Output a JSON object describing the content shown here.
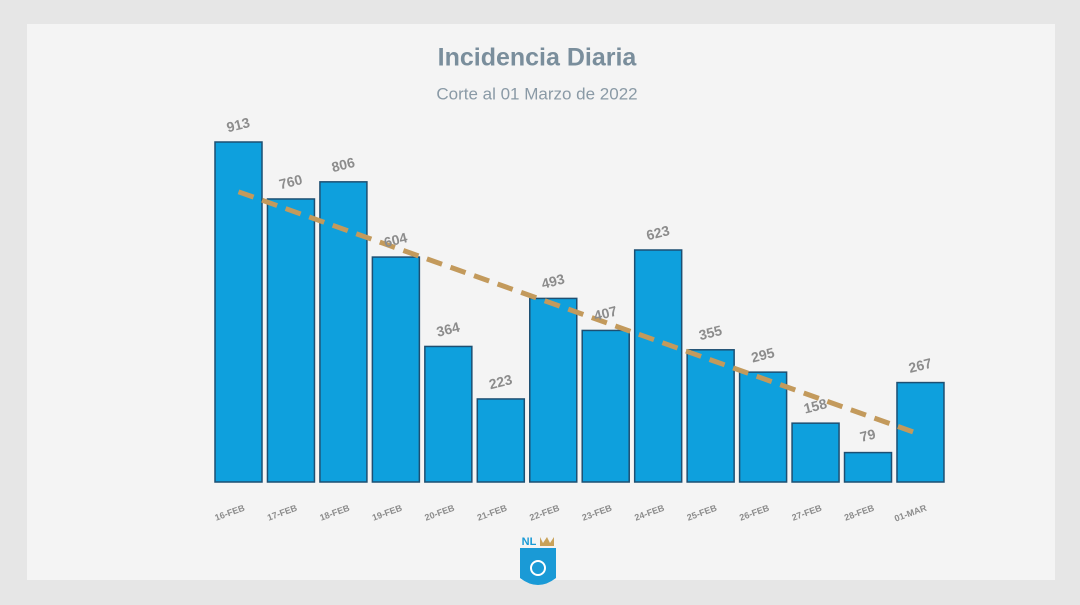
{
  "chart_data": {
    "type": "bar",
    "title": "Incidencia Diaria",
    "subtitle": "Corte al 01 Marzo de 2022",
    "categories": [
      "16-FEB",
      "17-FEB",
      "18-FEB",
      "19-FEB",
      "20-FEB",
      "21-FEB",
      "22-FEB",
      "23-FEB",
      "24-FEB",
      "25-FEB",
      "26-FEB",
      "27-FEB",
      "28-FEB",
      "01-MAR"
    ],
    "values": [
      913,
      760,
      806,
      604,
      364,
      223,
      493,
      407,
      623,
      355,
      295,
      158,
      79,
      267
    ],
    "color": "#0ea0dd",
    "trendline": "linear",
    "trendline_color": "#c39a5c"
  },
  "logo": "NL"
}
